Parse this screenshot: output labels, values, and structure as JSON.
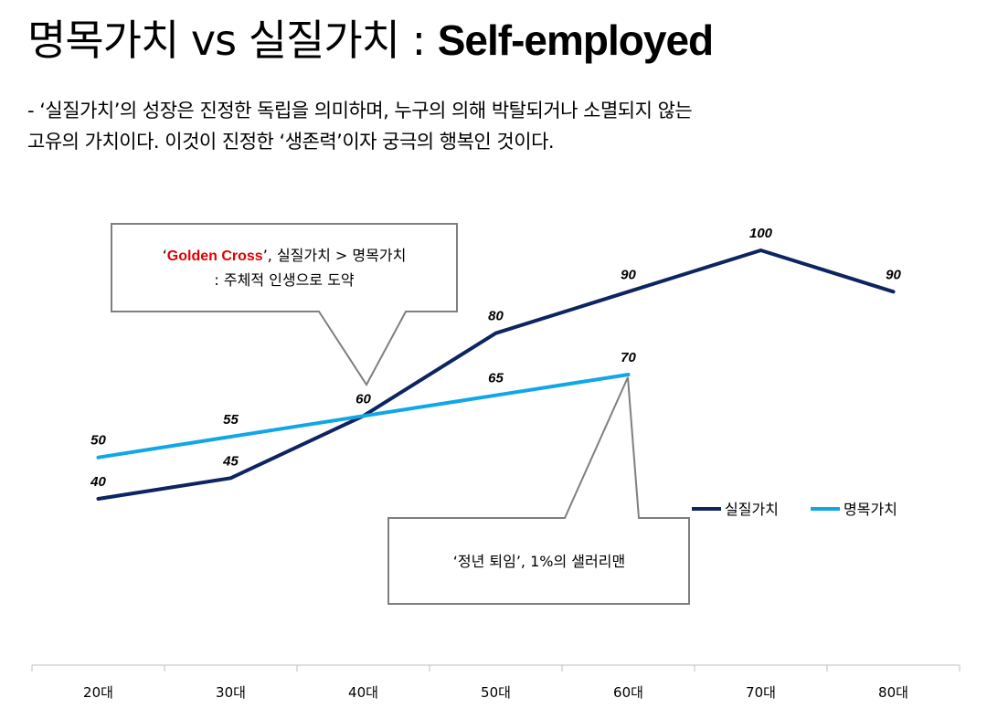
{
  "title": {
    "korean": "명목가치 vs 실질가치 : ",
    "english": "Self-employed"
  },
  "description": {
    "line1": "- ‘실질가치’의 성장은 진정한 독립을 의미하며, 누구의 의해 박탈되거나 소멸되지 않는",
    "line2": "고유의 가치이다. 이것이 진정한 ‘생존력’이자 궁극의 행복인 것이다."
  },
  "callout_golden": {
    "quote_open": "‘",
    "highlight": "Golden Cross",
    "rest": "’, 실질가치 > 명목가치",
    "line2": ": 주체적 인생으로 도약"
  },
  "callout_retire": {
    "text": "‘정년 퇴임’, 1%의 샐러리맨"
  },
  "chart_data": {
    "type": "line",
    "categories": [
      "20대",
      "30대",
      "40대",
      "50대",
      "60대",
      "70대",
      "80대"
    ],
    "series": [
      {
        "name": "실질가치",
        "color": "#0d2461",
        "values": [
          40,
          45,
          60,
          80,
          90,
          100,
          90
        ]
      },
      {
        "name": "명목가치",
        "color": "#11a7e6",
        "values": [
          50,
          55,
          60,
          65,
          70,
          null,
          null
        ]
      }
    ],
    "data_labels": {
      "실질가치": [
        "40",
        "45",
        "",
        "80",
        "90",
        "100",
        "90"
      ],
      "명목가치": [
        "50",
        "55",
        "60",
        "65",
        "70",
        "",
        ""
      ]
    },
    "legend_position": "right",
    "grid": false
  }
}
